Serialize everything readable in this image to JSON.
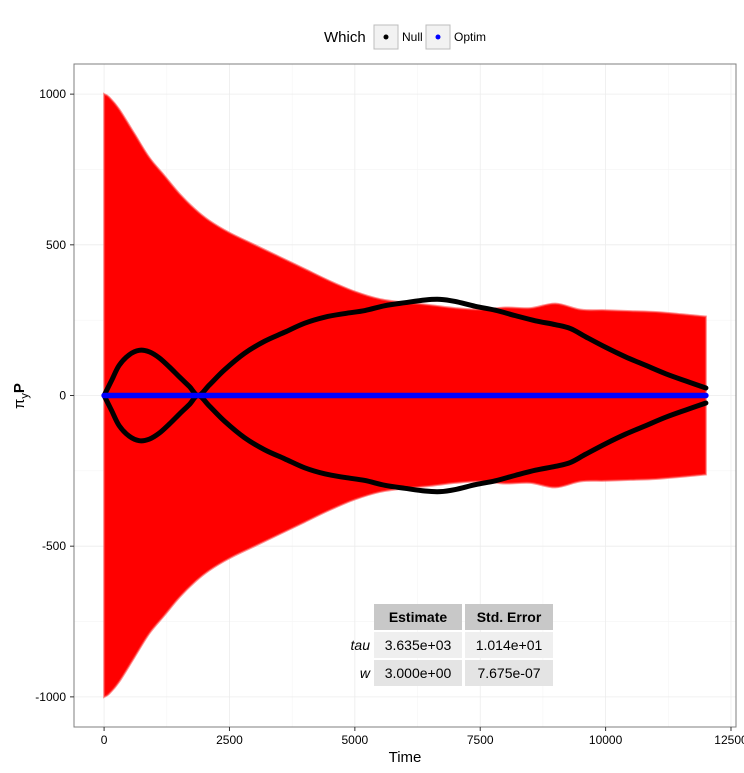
{
  "chart_data": {
    "type": "line",
    "xlabel": "Time",
    "ylabel": "π",
    "ylabel_sub": "y",
    "ylabel_main": "P",
    "xlim": [
      -600,
      12600
    ],
    "ylim": [
      -1100,
      1100
    ],
    "x_ticks": [
      0,
      2500,
      5000,
      7500,
      10000,
      12500
    ],
    "x_tick_labels": [
      "0",
      "2500",
      "5000",
      "7500",
      "10000",
      "12500"
    ],
    "y_ticks": [
      -1000,
      -500,
      0,
      500,
      1000
    ],
    "y_tick_labels": [
      "-1000",
      "-500",
      "0",
      "500",
      "1000"
    ],
    "grid": true,
    "legend": {
      "title": "Which",
      "position": "top",
      "entries": [
        {
          "label": "Null",
          "color": "#000000"
        },
        {
          "label": "Optim",
          "color": "#0000ff"
        }
      ]
    },
    "ribbon": {
      "color": "#ff0000",
      "x": [
        0,
        100,
        300,
        600,
        900,
        1200,
        1500,
        1800,
        2100,
        2500,
        3000,
        3500,
        4000,
        4500,
        5000,
        5500,
        6000,
        6500,
        7000,
        7500,
        8000,
        8500,
        9000,
        9500,
        10000,
        10500,
        11000,
        11500,
        12000
      ],
      "upper": [
        1000,
        990,
        950,
        870,
        790,
        730,
        670,
        620,
        580,
        540,
        500,
        460,
        420,
        380,
        345,
        320,
        308,
        300,
        290,
        285,
        292,
        290,
        305,
        285,
        283,
        280,
        277,
        270,
        262
      ]
    },
    "series": [
      {
        "name": "Null",
        "color": "#000000",
        "x": [
          0,
          150,
          300,
          500,
          700,
          900,
          1100,
          1300,
          1500,
          1700,
          1880,
          2100,
          2400,
          2800,
          3200,
          3600,
          4000,
          4400,
          4800,
          5200,
          5600,
          6000,
          6400,
          6700,
          7000,
          7400,
          7800,
          8200,
          8600,
          9000,
          9300,
          9600,
          10000,
          10400,
          10800,
          11200,
          11600,
          12000
        ],
        "upper": [
          0,
          50,
          100,
          135,
          150,
          145,
          125,
          95,
          62,
          30,
          0,
          35,
          85,
          140,
          180,
          210,
          240,
          260,
          272,
          282,
          298,
          308,
          317,
          319,
          312,
          296,
          283,
          265,
          248,
          235,
          222,
          195,
          160,
          128,
          100,
          72,
          48,
          25
        ]
      },
      {
        "name": "Optim",
        "color": "#0000ff",
        "x": [
          0,
          12000
        ],
        "y": [
          0,
          0
        ]
      }
    ],
    "table": {
      "headers": [
        "",
        "Estimate",
        "Std. Error"
      ],
      "rows": [
        {
          "name": "tau",
          "estimate": "3.635e+03",
          "std_error": "1.014e+01"
        },
        {
          "name": "w",
          "estimate": "3.000e+00",
          "std_error": "7.675e-07"
        }
      ]
    }
  }
}
